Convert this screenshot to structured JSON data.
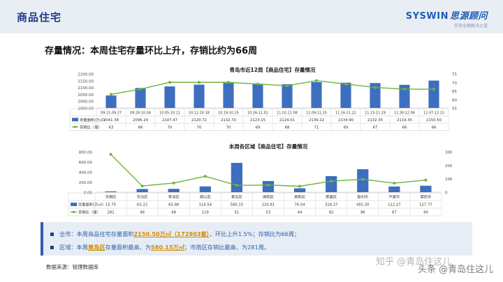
{
  "header": {
    "title": "商品住宅"
  },
  "logo": {
    "brand": "SYSWIN",
    "brand_cn": "思源顾问",
    "tagline": "实效全面解决之道"
  },
  "headline": "存量情况：本周住宅存量环比上升，存销比约为66周",
  "colors": {
    "bar": "#3d6ebf",
    "line": "#6db33f",
    "accent": "#1f3c88",
    "highlight": "#d48a00"
  },
  "chart_data": [
    {
      "type": "bar",
      "title": "青岛市近12周【商品住宅】存量情况",
      "categories": [
        "09.21-09.27",
        "09.28-10.04",
        "10.05-10.11",
        "10.12-10.18",
        "10.19-10.25",
        "10.26-11.01",
        "11.02-11.08",
        "11.09-11.15",
        "11.16-11.22",
        "11.23-11.29",
        "11.30-12.06",
        "12.07-12.13"
      ],
      "series": [
        {
          "name": "存量面积(万㎡)",
          "type": "bar",
          "axis": "left",
          "values": [
            2041.38,
            2096.24,
            2107.47,
            2120.72,
            2132.7,
            2123.15,
            2124.01,
            2139.22,
            2134.9,
            2132.35,
            2119.35,
            2150.5
          ],
          "labels": [
            "2041.38",
            "2096.24",
            "2107.47",
            "2120.72",
            "2132.70",
            "2123.15",
            "2124.01",
            "2139.22",
            "2134.90",
            "2132.35",
            "2119.35",
            "2150.50"
          ]
        },
        {
          "name": "存销比（周）",
          "type": "line",
          "axis": "right",
          "values": [
            63,
            66,
            70,
            70,
            70,
            69,
            68,
            71,
            69,
            67,
            66,
            66
          ]
        }
      ],
      "y_left": {
        "min": 1950,
        "max": 2200,
        "ticks": [
          "1950.00",
          "2000.00",
          "2050.00",
          "2100.00",
          "2150.00",
          "2200.00"
        ]
      },
      "y_right": {
        "min": 55,
        "max": 75,
        "ticks": [
          "55",
          "60",
          "65",
          "70",
          "75"
        ]
      }
    },
    {
      "type": "bar",
      "title": "本周各区域【商品住宅】存量情况",
      "categories": [
        "市南区",
        "市北区",
        "李沧区",
        "崂山区",
        "黄岛区",
        "城阳区",
        "高新区",
        "即墨区",
        "胶州市",
        "平度市",
        "莱西市"
      ],
      "series": [
        {
          "name": "存量面积(万㎡)",
          "type": "bar",
          "axis": "left",
          "values": [
            15.75,
            63.22,
            65.88,
            114.54,
            580.15,
            220.81,
            76.54,
            318.27,
            455.3,
            112.27,
            127.77
          ],
          "labels": [
            "15.75",
            "63.22",
            "65.88",
            "114.54",
            "580.15",
            "220.81",
            "76.54",
            "318.27",
            "455.30",
            "112.27",
            "127.77"
          ]
        },
        {
          "name": "存销比（周）",
          "type": "line",
          "axis": "right",
          "values": [
            281,
            46,
            68,
            118,
            51,
            53,
            44,
            82,
            96,
            67,
            90
          ]
        }
      ],
      "y_left": {
        "min": 0,
        "max": 800,
        "ticks": [
          "0.00",
          "200.00",
          "400.00",
          "600.00",
          "800.00"
        ]
      },
      "y_right": {
        "min": 0,
        "max": 300,
        "ticks": [
          "0",
          "100",
          "200",
          "300"
        ]
      }
    }
  ],
  "summary": {
    "line1": {
      "pre": "全市：本周商品住宅存量面积",
      "hl": "2150.50万㎡（172903套）",
      "post": "，环比上升1.5%；存销比为66周；"
    },
    "line2": {
      "pre": "区域：本周",
      "hl": "黄岛区",
      "mid": "存量面积最高，为",
      "hl2": "580.15万㎡",
      "post": "；市南区存销比最高，为281周。"
    }
  },
  "source": "数据来源：锐理数据库",
  "watermarks": [
    "知乎 @青岛住这儿",
    "头条 @青岛住这儿"
  ]
}
